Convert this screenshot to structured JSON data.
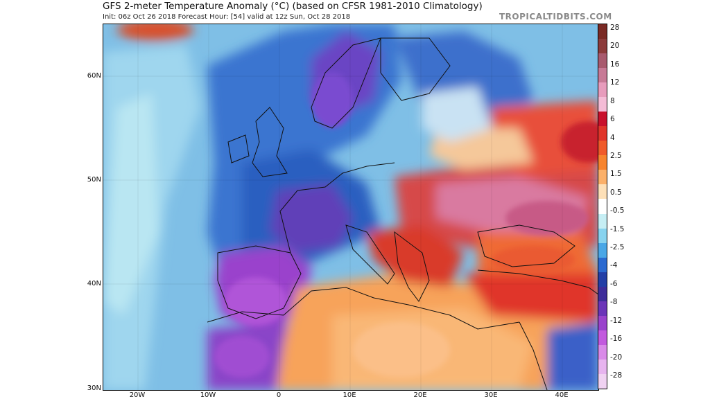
{
  "header": {
    "title": "GFS 2-meter Temperature Anomaly (°C) (based on CFSR 1981-2010 Climatology)",
    "subtitle": "Init: 06z Oct 26 2018   Forecast Hour: [54]   valid at 12z Sun, Oct 28 2018",
    "brand": "TROPICALTIDBITS.COM"
  },
  "map": {
    "lat_labels": [
      "60N",
      "50N",
      "40N",
      "30N"
    ],
    "lon_labels": [
      "20W",
      "10W",
      "0",
      "10E",
      "20E",
      "30E",
      "40E"
    ]
  },
  "colorbar": {
    "labels": [
      "28",
      "20",
      "16",
      "12",
      "8",
      "6",
      "4",
      "2.5",
      "1.5",
      "0.5",
      "-0.5",
      "-1.5",
      "-2.5",
      "-4",
      "-6",
      "-8",
      "-12",
      "-16",
      "-20",
      "-28"
    ],
    "colors": [
      "#7a2a24",
      "#8c3b3b",
      "#a85a6e",
      "#c77a96",
      "#e79cbc",
      "#f4bcd6",
      "#c8102b",
      "#e0352a",
      "#f05a2a",
      "#f7842e",
      "#fbb06a",
      "#fde0b8",
      "#ffffff",
      "#c6eef4",
      "#88d3ef",
      "#4aa7e6",
      "#2b6ad0",
      "#233fa6",
      "#3e2d9a",
      "#6b35b8",
      "#9a43cc",
      "#c25ade",
      "#d98ae8",
      "#e7b4ef",
      "#f0d2f2"
    ]
  },
  "palette": {
    "ocean": "#6fb0e0",
    "deep_blue": "#2b5fc0",
    "purple": "#9a43cc",
    "orange": "#f7a35a",
    "red": "#d93a2a",
    "pink": "#d97aa0"
  }
}
